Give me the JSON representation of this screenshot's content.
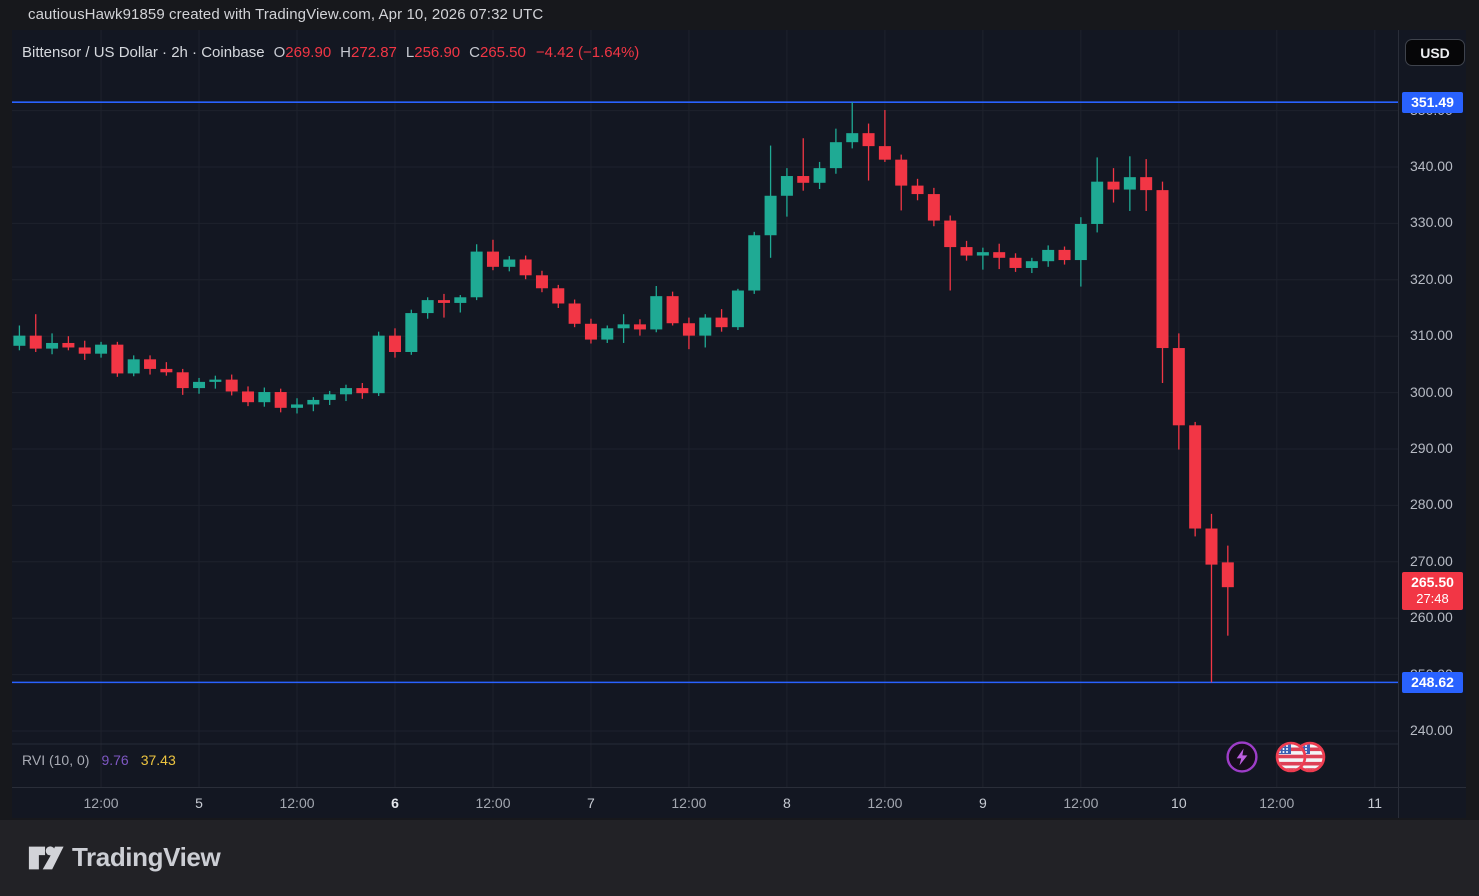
{
  "watermark": "cautiousHawk91859 created with TradingView.com, Apr 10, 2026 07:32 UTC",
  "header": {
    "symbol_title": "Bittensor / US Dollar · 2h · Coinbase",
    "ohlc": {
      "open_label": "O",
      "open": "269.90",
      "high_label": "H",
      "high": "272.87",
      "low_label": "L",
      "low": "256.90",
      "close_label": "C",
      "close": "265.50",
      "change": "−4.42 (−1.64%)"
    }
  },
  "currency_button": "USD",
  "indicator": {
    "name": "RVI",
    "params": "(10, 0)",
    "value1": "9.76",
    "value2": "37.43"
  },
  "footer": {
    "logo_text": "TradingView"
  },
  "icons": [
    "lightning-event-icon",
    "us-flag-event-icon",
    "us-flag-event-icon",
    "tradingview-logo-icon"
  ],
  "colors": {
    "chart_bg": "#131722",
    "page_bg": "#17181c",
    "grid": "#1e222d",
    "up_candle": "#1faa94",
    "down_candle": "#f23645",
    "level_line": "#2962ff",
    "last_price_bg": "#f23645",
    "legend_red": "#f23645",
    "rvi_line": "#7e57c2",
    "rvi_signal": "#ecc440"
  },
  "chart_data": {
    "type": "candlestick",
    "title": "Bittensor / US Dollar",
    "interval": "2h",
    "exchange": "Coinbase",
    "legend_ohlc": {
      "open": 269.9,
      "high": 272.87,
      "low": 256.9,
      "close": 265.5,
      "change": -4.42,
      "change_pct": -1.64
    },
    "y_axis": {
      "ticks": [
        240,
        250,
        260,
        270,
        280,
        290,
        300,
        310,
        320,
        330,
        340,
        350
      ],
      "top_price": 364.3,
      "bottom_price": 237.7,
      "grid": true
    },
    "levels": [
      {
        "price": 351.49,
        "label": "351.49"
      },
      {
        "price": 248.62,
        "label": "248.62"
      }
    ],
    "last_price_label": {
      "price": 265.5,
      "text": "265.50",
      "countdown": "27:48"
    },
    "time_labels": [
      {
        "i": 5,
        "t": "12:00",
        "k": "minor"
      },
      {
        "i": 11,
        "t": "5",
        "k": "day"
      },
      {
        "i": 17,
        "t": "12:00",
        "k": "minor"
      },
      {
        "i": 23,
        "t": "6",
        "k": "emph"
      },
      {
        "i": 29,
        "t": "12:00",
        "k": "minor"
      },
      {
        "i": 35,
        "t": "7",
        "k": "day"
      },
      {
        "i": 41,
        "t": "12:00",
        "k": "minor"
      },
      {
        "i": 47,
        "t": "8",
        "k": "day"
      },
      {
        "i": 53,
        "t": "12:00",
        "k": "minor"
      },
      {
        "i": 59,
        "t": "9",
        "k": "day"
      },
      {
        "i": 65,
        "t": "12:00",
        "k": "minor"
      },
      {
        "i": 71,
        "t": "10",
        "k": "day"
      },
      {
        "i": 77,
        "t": "12:00",
        "k": "minor"
      },
      {
        "i": 83,
        "t": "11",
        "k": "day"
      }
    ],
    "candles_format": [
      "open",
      "high",
      "low",
      "close"
    ],
    "candles": [
      [
        308.3,
        311.9,
        307.5,
        310.1
      ],
      [
        310.1,
        313.9,
        307.2,
        307.8
      ],
      [
        307.8,
        310.5,
        306.8,
        308.8
      ],
      [
        308.8,
        310.0,
        307.5,
        308.0
      ],
      [
        308.0,
        309.2,
        305.8,
        306.9
      ],
      [
        306.9,
        309.0,
        306.2,
        308.5
      ],
      [
        308.5,
        309.0,
        302.8,
        303.4
      ],
      [
        303.4,
        306.6,
        302.9,
        305.9
      ],
      [
        305.9,
        306.6,
        303.2,
        304.2
      ],
      [
        304.2,
        305.4,
        303.0,
        303.6
      ],
      [
        303.6,
        304.2,
        299.6,
        300.8
      ],
      [
        300.8,
        302.6,
        299.8,
        301.9
      ],
      [
        301.9,
        303.0,
        300.7,
        302.3
      ],
      [
        302.3,
        303.2,
        299.5,
        300.2
      ],
      [
        300.2,
        301.1,
        297.6,
        298.3
      ],
      [
        298.3,
        300.9,
        297.5,
        300.1
      ],
      [
        300.1,
        300.7,
        296.5,
        297.3
      ],
      [
        297.3,
        299.0,
        296.3,
        297.9
      ],
      [
        297.9,
        299.2,
        296.7,
        298.7
      ],
      [
        298.7,
        300.3,
        297.8,
        299.7
      ],
      [
        299.7,
        301.4,
        298.5,
        300.8
      ],
      [
        300.8,
        301.7,
        298.9,
        299.9
      ],
      [
        299.9,
        310.8,
        299.4,
        310.1
      ],
      [
        310.1,
        311.4,
        306.2,
        307.2
      ],
      [
        307.2,
        314.7,
        306.7,
        314.1
      ],
      [
        314.1,
        316.9,
        313.1,
        316.4
      ],
      [
        316.4,
        317.5,
        313.3,
        315.9
      ],
      [
        315.9,
        317.3,
        314.2,
        316.9
      ],
      [
        316.9,
        326.3,
        316.4,
        325.0
      ],
      [
        325.0,
        327.1,
        321.7,
        322.3
      ],
      [
        322.3,
        324.2,
        321.5,
        323.6
      ],
      [
        323.6,
        324.3,
        320.1,
        320.8
      ],
      [
        320.8,
        321.6,
        317.8,
        318.5
      ],
      [
        318.5,
        319.1,
        315.0,
        315.8
      ],
      [
        315.8,
        316.5,
        311.6,
        312.2
      ],
      [
        312.2,
        313.1,
        308.7,
        309.4
      ],
      [
        309.4,
        311.9,
        308.8,
        311.4
      ],
      [
        311.4,
        313.9,
        308.8,
        312.1
      ],
      [
        312.1,
        313.0,
        310.1,
        311.2
      ],
      [
        311.2,
        318.9,
        310.7,
        317.1
      ],
      [
        317.1,
        317.9,
        311.9,
        312.3
      ],
      [
        312.3,
        313.3,
        307.7,
        310.1
      ],
      [
        310.1,
        313.9,
        308.0,
        313.3
      ],
      [
        313.3,
        314.8,
        310.8,
        311.6
      ],
      [
        311.6,
        318.4,
        311.1,
        318.1
      ],
      [
        318.1,
        328.5,
        317.5,
        327.9
      ],
      [
        327.9,
        343.8,
        323.9,
        334.9
      ],
      [
        334.9,
        339.8,
        331.2,
        338.4
      ],
      [
        338.4,
        345.1,
        335.8,
        337.2
      ],
      [
        337.2,
        340.9,
        336.1,
        339.8
      ],
      [
        339.8,
        346.8,
        338.8,
        344.4
      ],
      [
        344.4,
        351.49,
        343.3,
        346.0
      ],
      [
        346.0,
        347.7,
        337.6,
        343.7
      ],
      [
        343.7,
        350.1,
        340.9,
        341.3
      ],
      [
        341.3,
        342.2,
        332.3,
        336.7
      ],
      [
        336.7,
        337.9,
        334.1,
        335.2
      ],
      [
        335.2,
        336.3,
        329.5,
        330.5
      ],
      [
        330.5,
        331.4,
        318.1,
        325.8
      ],
      [
        325.8,
        326.9,
        323.4,
        324.3
      ],
      [
        324.3,
        325.7,
        321.8,
        324.9
      ],
      [
        324.9,
        326.4,
        321.9,
        323.9
      ],
      [
        323.9,
        324.7,
        321.4,
        322.1
      ],
      [
        322.1,
        323.9,
        321.2,
        323.3
      ],
      [
        323.3,
        326.1,
        322.3,
        325.3
      ],
      [
        325.3,
        325.9,
        322.7,
        323.5
      ],
      [
        323.5,
        331.1,
        318.8,
        329.9
      ],
      [
        329.9,
        341.7,
        328.4,
        337.4
      ],
      [
        337.4,
        339.8,
        333.7,
        336.0
      ],
      [
        336.0,
        341.9,
        332.2,
        338.2
      ],
      [
        338.2,
        341.4,
        332.2,
        335.9
      ],
      [
        335.9,
        337.4,
        301.7,
        307.9
      ],
      [
        307.9,
        310.5,
        289.9,
        294.2
      ],
      [
        294.2,
        294.8,
        274.5,
        275.9
      ],
      [
        275.9,
        278.5,
        248.62,
        269.5
      ],
      [
        269.9,
        272.87,
        256.9,
        265.5
      ]
    ]
  }
}
